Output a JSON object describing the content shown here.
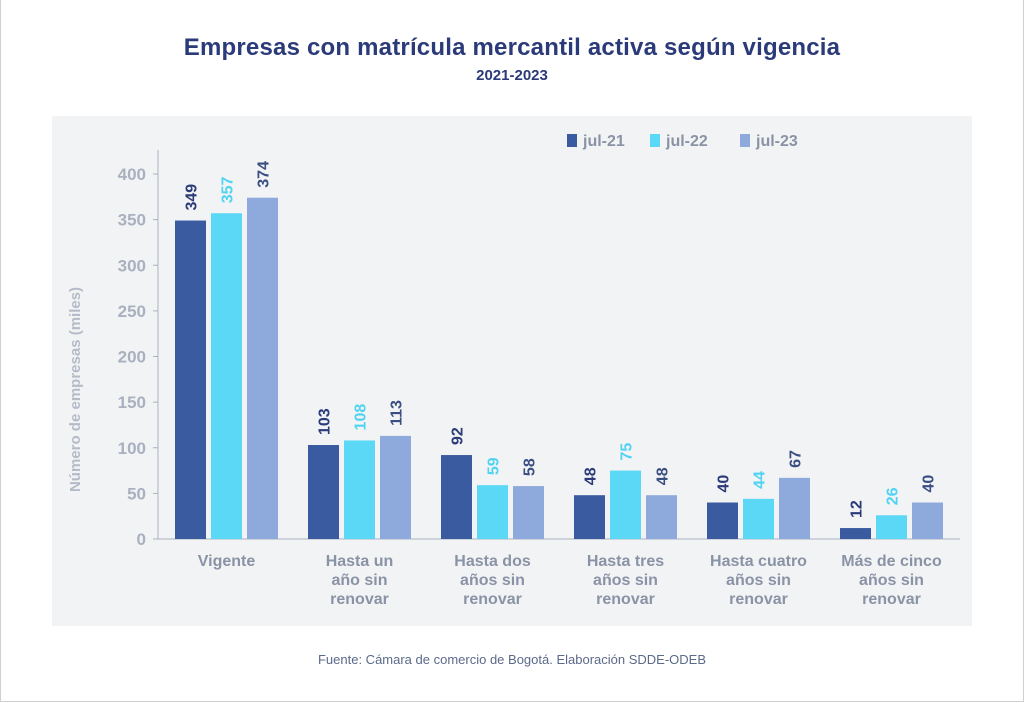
{
  "title": "Empresas con matrícula mercantil activa según vigencia",
  "subtitle": "2021-2023",
  "source": "Fuente: Cámara de comercio de Bogotá. Elaboración SDDE-ODEB",
  "chart_data": {
    "type": "bar",
    "title": "Empresas con matrícula mercantil activa según vigencia",
    "subtitle": "2021-2023",
    "ylabel": "Número de empresas (miles)",
    "xlabel": "",
    "ylim": [
      0,
      400
    ],
    "yticks": [
      0,
      50,
      100,
      150,
      200,
      250,
      300,
      350,
      400
    ],
    "grid": false,
    "legend_position": "top-right",
    "categories": [
      [
        "Vigente"
      ],
      [
        "Hasta un",
        "año sin",
        "renovar"
      ],
      [
        "Hasta dos",
        "años sin",
        "renovar"
      ],
      [
        "Hasta tres",
        "años sin",
        "renovar"
      ],
      [
        "Hasta cuatro",
        "años sin",
        "renovar"
      ],
      [
        "Más de cinco",
        "años sin",
        "renovar"
      ]
    ],
    "series": [
      {
        "name": "jul-21",
        "color": "#3a5ba0",
        "label_color": "#2b3a78",
        "values": [
          349,
          103,
          92,
          48,
          40,
          12
        ]
      },
      {
        "name": "jul-22",
        "color": "#5ad8f5",
        "label_color": "#4fd3f2",
        "values": [
          357,
          108,
          59,
          75,
          44,
          26
        ]
      },
      {
        "name": "jul-23",
        "color": "#8ea9dc",
        "label_color": "#3a4e82",
        "values": [
          374,
          113,
          58,
          48,
          67,
          40
        ]
      }
    ],
    "colors": {
      "axis": "#a9b0bf",
      "tick_label": "#a9b0bf",
      "category_label": "#8a93a6",
      "ylabel": "#b5bbc8"
    }
  }
}
